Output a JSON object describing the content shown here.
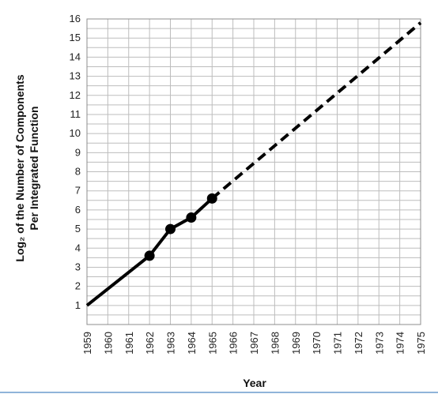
{
  "chart_data": {
    "type": "line",
    "title": "",
    "xlabel": "Year",
    "ylabel_line1": "Log₂ of the Number of Components",
    "ylabel_line2": "Per Integrated Function",
    "xlim": [
      1959,
      1975
    ],
    "ylim": [
      0,
      16
    ],
    "x_ticks": [
      1959,
      1960,
      1961,
      1962,
      1963,
      1964,
      1965,
      1966,
      1967,
      1968,
      1969,
      1970,
      1971,
      1972,
      1973,
      1974,
      1975
    ],
    "y_ticks": [
      1,
      2,
      3,
      4,
      5,
      6,
      7,
      8,
      9,
      10,
      11,
      12,
      13,
      14,
      15,
      16
    ],
    "grid": true,
    "series": [
      {
        "style": "solid",
        "markers": true,
        "x": [
          1962,
          1963,
          1964,
          1965
        ],
        "y": [
          3.6,
          5.0,
          5.6,
          6.6
        ]
      },
      {
        "style": "solid",
        "markers": false,
        "x": [
          1959,
          1962
        ],
        "y": [
          1.0,
          3.6
        ]
      },
      {
        "style": "dashed",
        "markers": false,
        "x": [
          1965,
          1975
        ],
        "y": [
          6.6,
          15.8
        ]
      }
    ],
    "colors": {
      "line": "#000000",
      "grid": "#bdbdbd",
      "frame": "#8c8c8c"
    }
  }
}
